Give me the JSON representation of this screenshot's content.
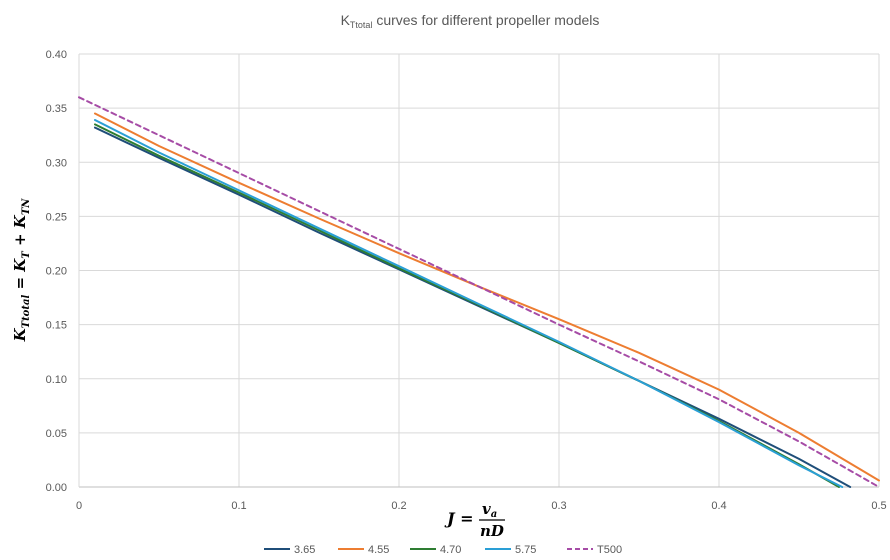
{
  "chart_data": {
    "type": "line",
    "title": {
      "main": "K",
      "sub": "Ttotal",
      "rest": " curves for different propeller models"
    },
    "xlabel": {
      "lhs": "J = ",
      "numerator": "v",
      "numerator_sub": "a",
      "denominator": "nD"
    },
    "ylabel": {
      "k1": "K",
      "k1_sub": "Ttotal",
      "eq": " = ",
      "k2": "K",
      "k2_sub": "T",
      "plus": " + ",
      "k3": "K",
      "k3_sub": "TN"
    },
    "xlim": [
      0,
      0.5
    ],
    "ylim": [
      0,
      0.4
    ],
    "xticks": [
      "0",
      "0.1",
      "0.2",
      "0.3",
      "0.4",
      "0.5"
    ],
    "yticks": [
      "0.00",
      "0.05",
      "0.10",
      "0.15",
      "0.20",
      "0.25",
      "0.30",
      "0.35",
      "0.40"
    ],
    "grid": "vertical and horizontal",
    "legend_position": "bottom",
    "series": [
      {
        "name": "3.65",
        "color": "#1f4e79",
        "dash": "solid",
        "x": [
          0.01,
          0.05,
          0.1,
          0.15,
          0.2,
          0.25,
          0.3,
          0.35,
          0.4,
          0.45,
          0.482
        ],
        "y": [
          0.332,
          0.304,
          0.27,
          0.235,
          0.201,
          0.167,
          0.133,
          0.098,
          0.063,
          0.026,
          0.0
        ]
      },
      {
        "name": "4.55",
        "color": "#ed7d31",
        "dash": "solid",
        "x": [
          0.01,
          0.05,
          0.1,
          0.15,
          0.2,
          0.25,
          0.3,
          0.35,
          0.4,
          0.45,
          0.5
        ],
        "y": [
          0.345,
          0.315,
          0.281,
          0.248,
          0.216,
          0.185,
          0.155,
          0.124,
          0.09,
          0.05,
          0.006
        ]
      },
      {
        "name": "4.70",
        "color": "#2e7d32",
        "dash": "solid",
        "x": [
          0.01,
          0.05,
          0.1,
          0.15,
          0.2,
          0.25,
          0.3,
          0.35,
          0.4,
          0.45,
          0.475
        ],
        "y": [
          0.335,
          0.306,
          0.272,
          0.237,
          0.202,
          0.168,
          0.133,
          0.098,
          0.061,
          0.021,
          0.0
        ]
      },
      {
        "name": "5.75",
        "color": "#2a9fd6",
        "dash": "solid",
        "x": [
          0.01,
          0.05,
          0.1,
          0.15,
          0.2,
          0.25,
          0.3,
          0.35,
          0.4,
          0.45,
          0.477
        ],
        "y": [
          0.339,
          0.309,
          0.274,
          0.239,
          0.204,
          0.169,
          0.134,
          0.098,
          0.06,
          0.02,
          0.0
        ]
      },
      {
        "name": "T500",
        "color": "#a64ca6",
        "dash": "dashed",
        "x": [
          0.0,
          0.05,
          0.1,
          0.15,
          0.2,
          0.25,
          0.3,
          0.35,
          0.4,
          0.45,
          0.5
        ],
        "y": [
          0.36,
          0.325,
          0.29,
          0.255,
          0.22,
          0.185,
          0.15,
          0.116,
          0.081,
          0.042,
          0.0
        ]
      }
    ]
  }
}
